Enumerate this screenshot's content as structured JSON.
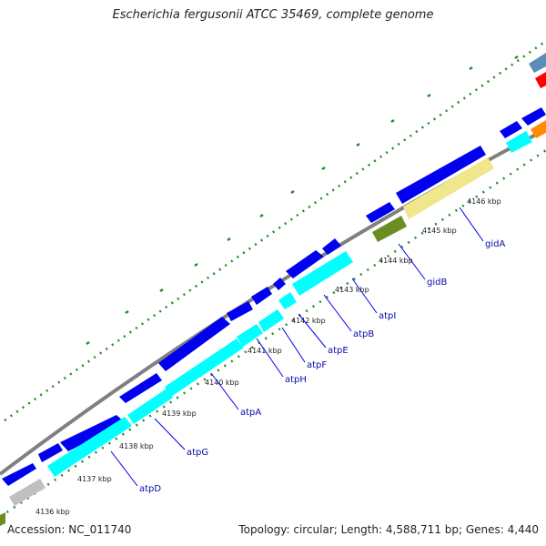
{
  "title": "Escherichia fergusonii ATCC 35469, complete genome",
  "footer": {
    "accession": "Accession: NC_011740",
    "summary": "Topology: circular; Length: 4,588,711 bp; Genes: 4,440"
  },
  "colors": {
    "backbone": "#808080",
    "forward_gene": "#0000ee",
    "cyan_feature": "#00ffff",
    "olive_feature": "#6b8e23",
    "khaki_feature": "#f0e68c",
    "gray_feature": "#c0c0c0",
    "label_blue": "#0a0aa8",
    "gc_dots": "#228b22"
  },
  "ticks": [
    "4136 kbp",
    "4137 kbp",
    "4138 kbp",
    "4139 kbp",
    "4140 kbp",
    "4141 kbp",
    "4142 kbp",
    "4143 kbp",
    "4144 kbp",
    "4145 kbp",
    "4146 kbp"
  ],
  "genes": [
    "atpD",
    "atpG",
    "atpA",
    "atpH",
    "atpF",
    "atpE",
    "atpB",
    "atpI",
    "gidB",
    "gidA"
  ]
}
